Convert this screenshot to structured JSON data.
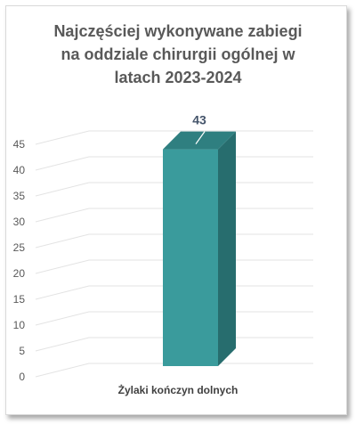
{
  "chart_data": {
    "type": "bar",
    "title": "Najczęściej wykonywane zabiegi na oddziale chirurgii ogólnej w latach 2023-2024",
    "title_lines": [
      "Najczęściej wykonywane zabiegi",
      "na oddziale chirurgii ogólnej w",
      "latach 2023-2024"
    ],
    "categories": [
      "Żylaki kończyn dolnych"
    ],
    "values": [
      43
    ],
    "ylim": [
      0,
      45
    ],
    "yticks": [
      0,
      5,
      10,
      15,
      20,
      25,
      30,
      35,
      40,
      45
    ],
    "grid": true,
    "three_d": true,
    "data_labels": true,
    "bar_color": "#3a9b9c",
    "bar_side_color": "#276d6e",
    "bar_top_color": "#2f7f80"
  }
}
